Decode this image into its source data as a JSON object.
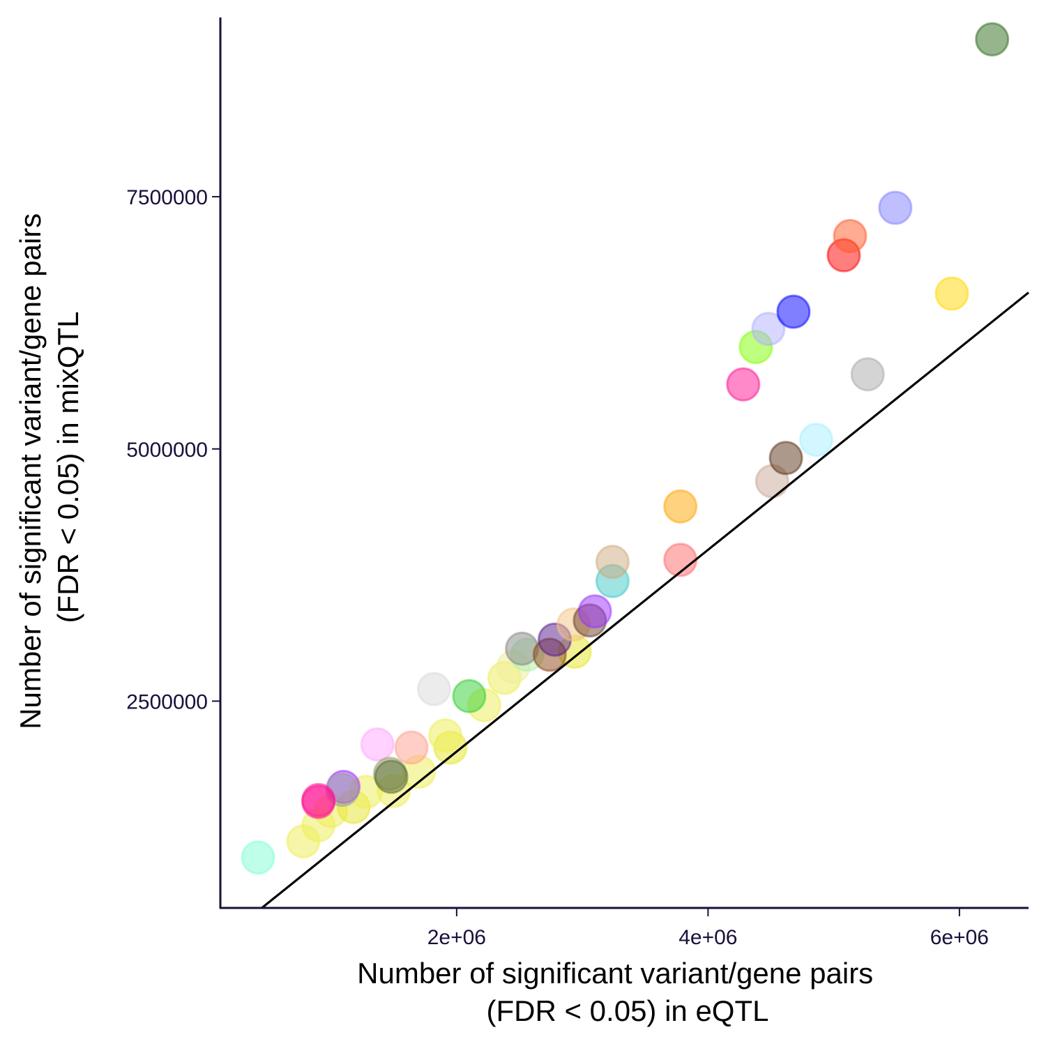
{
  "chart_data": {
    "type": "scatter",
    "title": "",
    "xlabel": [
      "Number of significant variant/gene pairs",
      "(FDR < 0.05) in eQTL"
    ],
    "ylabel": [
      "Number of significant variant/gene pairs",
      "(FDR < 0.05) in mixQTL"
    ],
    "xlim": [
      120000,
      6550000
    ],
    "ylim": [
      450000,
      9450000
    ],
    "x_ticks": [
      2000000,
      4000000,
      6000000
    ],
    "x_tick_labels": [
      "2e+06",
      "4e+06",
      "6e+06"
    ],
    "y_ticks": [
      2500000,
      5000000,
      7500000
    ],
    "y_tick_labels": [
      "2500000",
      "5000000",
      "7500000"
    ],
    "grid": false,
    "legend": "none",
    "reference_line": {
      "slope": 1,
      "intercept": 0,
      "color": "#000000"
    },
    "points": [
      {
        "x": 420000,
        "y": 950000,
        "color": "#7fffd4"
      },
      {
        "x": 780000,
        "y": 1110000,
        "color": "#eeee55"
      },
      {
        "x": 900000,
        "y": 1270000,
        "color": "#eeee55"
      },
      {
        "x": 1000000,
        "y": 1410000,
        "color": "#eeee55"
      },
      {
        "x": 1180000,
        "y": 1450000,
        "color": "#e6e629"
      },
      {
        "x": 1280000,
        "y": 1600000,
        "color": "#eeee55"
      },
      {
        "x": 1500000,
        "y": 1610000,
        "color": "#eeee55"
      },
      {
        "x": 1700000,
        "y": 1800000,
        "color": "#eeee55"
      },
      {
        "x": 1950000,
        "y": 2040000,
        "color": "#e6e629"
      },
      {
        "x": 1910000,
        "y": 2160000,
        "color": "#eeee55"
      },
      {
        "x": 2220000,
        "y": 2460000,
        "color": "#eeee55"
      },
      {
        "x": 2380000,
        "y": 2730000,
        "color": "#eeee55"
      },
      {
        "x": 2450000,
        "y": 2840000,
        "color": "#eeee99"
      },
      {
        "x": 2940000,
        "y": 2990000,
        "color": "#e6e629"
      },
      {
        "x": 2560000,
        "y": 2960000,
        "color": "#b0f0b0"
      },
      {
        "x": 2520000,
        "y": 3020000,
        "color": "#888888"
      },
      {
        "x": 2740000,
        "y": 2960000,
        "color": "#8b4513"
      },
      {
        "x": 2780000,
        "y": 3110000,
        "color": "#551a8b"
      },
      {
        "x": 2930000,
        "y": 3260000,
        "color": "#f4c484"
      },
      {
        "x": 3060000,
        "y": 3300000,
        "color": "#6b4226"
      },
      {
        "x": 3100000,
        "y": 3390000,
        "color": "#9b30ff"
      },
      {
        "x": 3240000,
        "y": 3690000,
        "color": "#40c8c8"
      },
      {
        "x": 3240000,
        "y": 3880000,
        "color": "#cdaa7d"
      },
      {
        "x": 3780000,
        "y": 3900000,
        "color": "#ff6a6a"
      },
      {
        "x": 3780000,
        "y": 4430000,
        "color": "#ffa500"
      },
      {
        "x": 4280000,
        "y": 5640000,
        "color": "#ff1493"
      },
      {
        "x": 4380000,
        "y": 6010000,
        "color": "#7fff00"
      },
      {
        "x": 4480000,
        "y": 6190000,
        "color": "#b0b0ff"
      },
      {
        "x": 4680000,
        "y": 6360000,
        "color": "#0000ff"
      },
      {
        "x": 4510000,
        "y": 4680000,
        "color": "#c8a896"
      },
      {
        "x": 4620000,
        "y": 4910000,
        "color": "#5c3317"
      },
      {
        "x": 4860000,
        "y": 5090000,
        "color": "#a6f0ff"
      },
      {
        "x": 5270000,
        "y": 5740000,
        "color": "#aaaaaa"
      },
      {
        "x": 5080000,
        "y": 6920000,
        "color": "#ff0000"
      },
      {
        "x": 5130000,
        "y": 7110000,
        "color": "#ff5a28"
      },
      {
        "x": 5490000,
        "y": 7390000,
        "color": "#8080ff"
      },
      {
        "x": 5940000,
        "y": 6540000,
        "color": "#ffd700"
      },
      {
        "x": 6260000,
        "y": 9060000,
        "color": "#2e6b20"
      },
      {
        "x": 1820000,
        "y": 2620000,
        "color": "#d9d9d9"
      },
      {
        "x": 2100000,
        "y": 2550000,
        "color": "#32cd32"
      },
      {
        "x": 1370000,
        "y": 2070000,
        "color": "#ffa6ff"
      },
      {
        "x": 1640000,
        "y": 2040000,
        "color": "#ffa090"
      },
      {
        "x": 1470000,
        "y": 1780000,
        "color": "#9aa06e"
      },
      {
        "x": 1480000,
        "y": 1750000,
        "color": "#556b2f"
      },
      {
        "x": 1100000,
        "y": 1650000,
        "color": "#a030ff"
      },
      {
        "x": 1090000,
        "y": 1620000,
        "color": "#9aa0a0"
      },
      {
        "x": 900000,
        "y": 1520000,
        "color": "#ff1493"
      },
      {
        "x": 900000,
        "y": 1500000,
        "color": "#ff1493"
      }
    ]
  }
}
